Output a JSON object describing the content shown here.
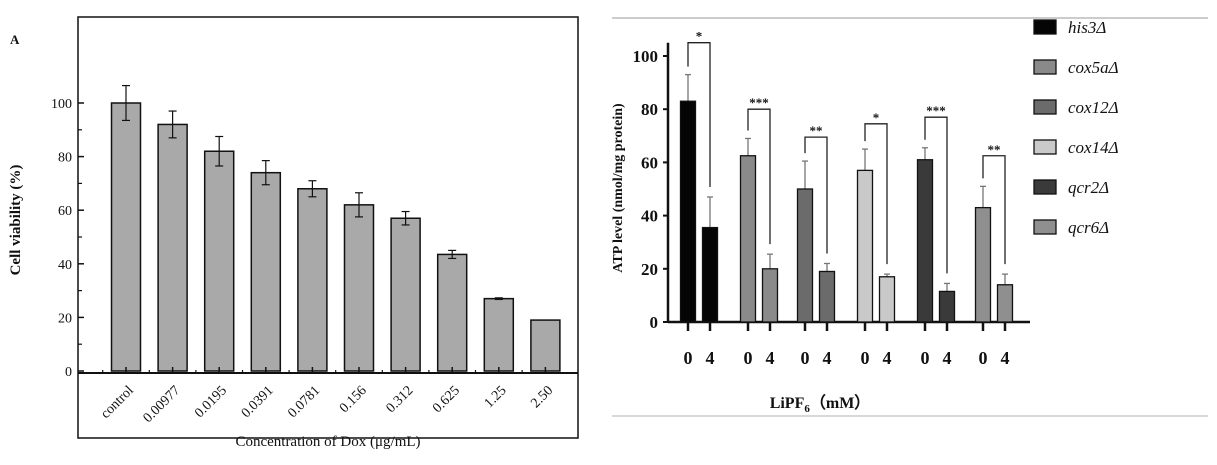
{
  "chart_data": [
    {
      "type": "bar",
      "panel_label": "A",
      "title": "",
      "xlabel": "Concentration of Dox (μg/mL)",
      "ylabel": "Cell viability (%)",
      "ylim": [
        0,
        110
      ],
      "yticks": [
        0,
        20,
        40,
        60,
        80,
        100
      ],
      "categories": [
        "control",
        "0.00977",
        "0.0195",
        "0.0391",
        "0.0781",
        "0.156",
        "0.312",
        "0.625",
        "1.25",
        "2.50"
      ],
      "values": [
        100,
        92,
        82,
        74,
        68,
        62,
        57,
        43.5,
        27,
        19
      ],
      "errors": [
        6.5,
        5,
        5.5,
        4.5,
        3,
        4.5,
        2.5,
        1.5,
        0.3,
        0
      ],
      "bar_color": "#a9a9a9"
    },
    {
      "type": "bar",
      "title": "",
      "xlabel": "LiPF",
      "xlabel_sub": "6",
      "xlabel_unit": "（mM）",
      "ylabel": "ATP level (nmol/mg protein)",
      "ylim": [
        0,
        110
      ],
      "yticks": [
        0,
        20,
        40,
        60,
        80,
        100
      ],
      "legend_position": "right",
      "groups": [
        {
          "name": "his3Δ",
          "color": "#050505",
          "x": [
            "0",
            "4"
          ],
          "values": [
            83,
            35.5
          ],
          "errors": [
            10,
            11.5
          ],
          "significance": "*",
          "bracket": 105
        },
        {
          "name": "cox5aΔ",
          "color": "#8a8a8a",
          "x": [
            "0",
            "4"
          ],
          "values": [
            62.5,
            20
          ],
          "errors": [
            6.5,
            5.5
          ],
          "significance": "***",
          "bracket": 80
        },
        {
          "name": "cox12Δ",
          "color": "#6b6b6b",
          "x": [
            "0",
            "4"
          ],
          "values": [
            50,
            19
          ],
          "errors": [
            10.5,
            3
          ],
          "significance": "**",
          "bracket": 69.5
        },
        {
          "name": "cox14Δ",
          "color": "#c9c9c9",
          "x": [
            "0",
            "4"
          ],
          "values": [
            57,
            17
          ],
          "errors": [
            8,
            1
          ],
          "significance": "*",
          "bracket": 74.5
        },
        {
          "name": "qcr2Δ",
          "color": "#3a3a3a",
          "x": [
            "0",
            "4"
          ],
          "values": [
            61,
            11.5
          ],
          "errors": [
            4.5,
            3
          ],
          "significance": "***",
          "bracket": 77
        },
        {
          "name": "qcr6Δ",
          "color": "#8f8f8f",
          "x": [
            "0",
            "4"
          ],
          "values": [
            43,
            14
          ],
          "errors": [
            8,
            4
          ],
          "significance": "**",
          "bracket": 62.5
        }
      ]
    }
  ]
}
